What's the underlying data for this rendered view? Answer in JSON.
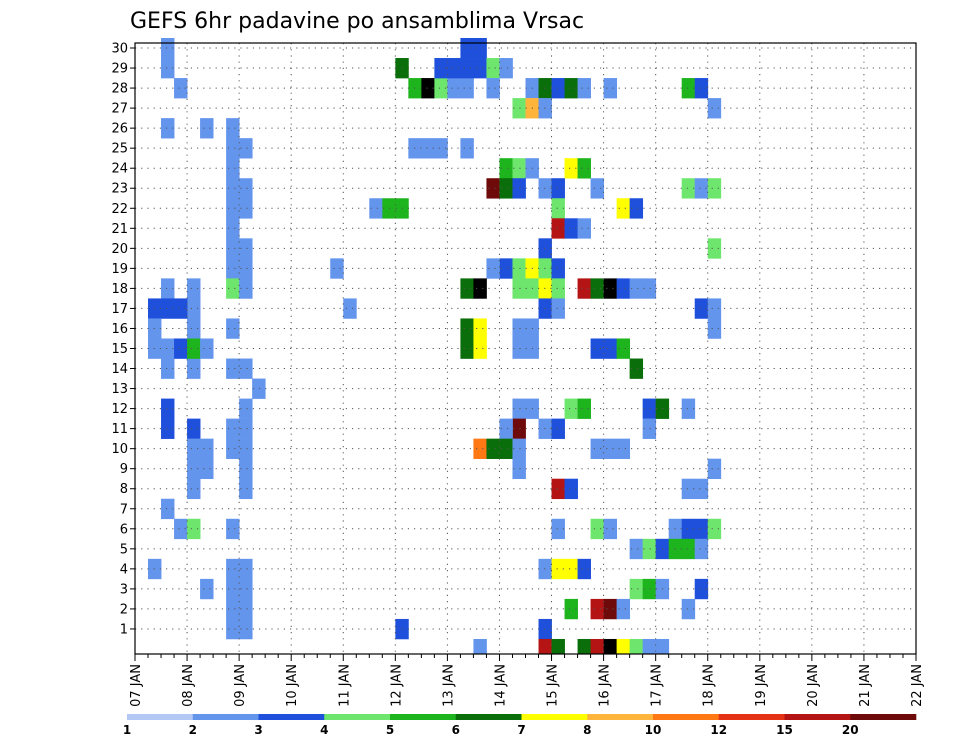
{
  "chart_data": {
    "type": "heatmap",
    "title": "GEFS 6hr padavine po ansamblima Vrsac",
    "x_tick_labels": [
      "07 JAN",
      "08 JAN",
      "09 JAN",
      "10 JAN",
      "11 JAN",
      "12 JAN",
      "13 JAN",
      "14 JAN",
      "15 JAN",
      "16 JAN",
      "17 JAN",
      "18 JAN",
      "19 JAN",
      "20 JAN",
      "21 JAN",
      "22 JAN"
    ],
    "y_tick_labels": [
      "1",
      "2",
      "3",
      "4",
      "5",
      "6",
      "7",
      "8",
      "9",
      "10",
      "11",
      "12",
      "13",
      "14",
      "15",
      "16",
      "17",
      "18",
      "19",
      "20",
      "21",
      "22",
      "23",
      "24",
      "25",
      "26",
      "27",
      "28",
      "29",
      "30"
    ],
    "x_steps_per_day": 4,
    "y_rows": [
      "0",
      "1",
      "2",
      "3",
      "4",
      "5",
      "6",
      "7",
      "8",
      "9",
      "10",
      "11",
      "12",
      "13",
      "14",
      "15",
      "16",
      "17",
      "18",
      "19",
      "20",
      "21",
      "22",
      "23",
      "24",
      "25",
      "26",
      "27",
      "28",
      "29",
      "30"
    ],
    "grid": true,
    "colorbar": {
      "labels": [
        "1",
        "2",
        "3",
        "4",
        "5",
        "6",
        "7",
        "8",
        "10",
        "12",
        "15",
        "20"
      ],
      "colors": [
        "#b4c8f5",
        "#6495ed",
        "#1e50dc",
        "#6ee66e",
        "#1eb41e",
        "#0a6e0a",
        "#ffff00",
        "#ffb43c",
        "#ff7814",
        "#e63214",
        "#b41414",
        "#6e0a0a"
      ]
    },
    "cells": [
      [
        2,
        30,
        1
      ],
      [
        2,
        29,
        1
      ],
      [
        2,
        18,
        1
      ],
      [
        2,
        17,
        2
      ],
      [
        2,
        15,
        1
      ],
      [
        2,
        14,
        1
      ],
      [
        2,
        12,
        2
      ],
      [
        2,
        11,
        2
      ],
      [
        2,
        7,
        1
      ],
      [
        1,
        17,
        2
      ],
      [
        1,
        16,
        1
      ],
      [
        1,
        15,
        1
      ],
      [
        1,
        4,
        1
      ],
      [
        3,
        28,
        1
      ],
      [
        2,
        26,
        1
      ],
      [
        5,
        26,
        1
      ],
      [
        4,
        18,
        1
      ],
      [
        4,
        17,
        1
      ],
      [
        4,
        16,
        1
      ],
      [
        4,
        14,
        1
      ],
      [
        4,
        11,
        2
      ],
      [
        3,
        17,
        2
      ],
      [
        3,
        15,
        2
      ],
      [
        4,
        15,
        4
      ],
      [
        5,
        15,
        1
      ],
      [
        4,
        10,
        1
      ],
      [
        5,
        10,
        1
      ],
      [
        4,
        9,
        1
      ],
      [
        5,
        9,
        1
      ],
      [
        4,
        8,
        1
      ],
      [
        5,
        3,
        1
      ],
      [
        3,
        6,
        1
      ],
      [
        4,
        6,
        3
      ],
      [
        7,
        26,
        1
      ],
      [
        7,
        25,
        1
      ],
      [
        8,
        25,
        1
      ],
      [
        7,
        24,
        1
      ],
      [
        7,
        23,
        1
      ],
      [
        8,
        23,
        1
      ],
      [
        7,
        22,
        1
      ],
      [
        8,
        22,
        1
      ],
      [
        7,
        21,
        1
      ],
      [
        7,
        20,
        1
      ],
      [
        8,
        20,
        1
      ],
      [
        7,
        19,
        1
      ],
      [
        8,
        19,
        1
      ],
      [
        7,
        18,
        3
      ],
      [
        8,
        18,
        1
      ],
      [
        7,
        16,
        1
      ],
      [
        7,
        14,
        1
      ],
      [
        8,
        14,
        1
      ],
      [
        8,
        12,
        1
      ],
      [
        7,
        11,
        1
      ],
      [
        8,
        11,
        1
      ],
      [
        7,
        10,
        1
      ],
      [
        8,
        10,
        1
      ],
      [
        8,
        9,
        1
      ],
      [
        8,
        8,
        1
      ],
      [
        7,
        6,
        1
      ],
      [
        7,
        4,
        1
      ],
      [
        8,
        4,
        1
      ],
      [
        7,
        3,
        1
      ],
      [
        8,
        3,
        1
      ],
      [
        7,
        2,
        1
      ],
      [
        8,
        2,
        1
      ],
      [
        7,
        1,
        1
      ],
      [
        8,
        1,
        1
      ],
      [
        9,
        13,
        1
      ],
      [
        15,
        19,
        1
      ],
      [
        16,
        17,
        1
      ],
      [
        18,
        22,
        1
      ],
      [
        19,
        22,
        4
      ],
      [
        20,
        22,
        4
      ],
      [
        20,
        29,
        5
      ],
      [
        20,
        1,
        2
      ],
      [
        21,
        25,
        1
      ],
      [
        22,
        25,
        1
      ],
      [
        23,
        25,
        1
      ],
      [
        25,
        25,
        1
      ],
      [
        21,
        28,
        4
      ],
      [
        22,
        28,
        14
      ],
      [
        23,
        28,
        3
      ],
      [
        24,
        28,
        1
      ],
      [
        25,
        28,
        1
      ],
      [
        23,
        29,
        2
      ],
      [
        24,
        29,
        2
      ],
      [
        25,
        30,
        2
      ],
      [
        26,
        30,
        2
      ],
      [
        25,
        29,
        2
      ],
      [
        26,
        29,
        2
      ],
      [
        27,
        29,
        3
      ],
      [
        28,
        29,
        1
      ],
      [
        27,
        28,
        1
      ],
      [
        30,
        28,
        1
      ],
      [
        31,
        28,
        5
      ],
      [
        32,
        28,
        2
      ],
      [
        33,
        28,
        5
      ],
      [
        34,
        28,
        1
      ],
      [
        36,
        28,
        1
      ],
      [
        42,
        28,
        4
      ],
      [
        43,
        28,
        2
      ],
      [
        29,
        27,
        3
      ],
      [
        30,
        27,
        7
      ],
      [
        31,
        27,
        1
      ],
      [
        44,
        27,
        1
      ],
      [
        28,
        24,
        4
      ],
      [
        29,
        24,
        3
      ],
      [
        30,
        24,
        1
      ],
      [
        33,
        24,
        6
      ],
      [
        34,
        24,
        4
      ],
      [
        27,
        23,
        11
      ],
      [
        28,
        23,
        5
      ],
      [
        29,
        23,
        2
      ],
      [
        31,
        23,
        1
      ],
      [
        32,
        23,
        2
      ],
      [
        35,
        23,
        1
      ],
      [
        42,
        23,
        3
      ],
      [
        43,
        23,
        1
      ],
      [
        44,
        23,
        3
      ],
      [
        32,
        22,
        3
      ],
      [
        37,
        22,
        6
      ],
      [
        38,
        22,
        2
      ],
      [
        32,
        21,
        10
      ],
      [
        33,
        21,
        2
      ],
      [
        34,
        21,
        1
      ],
      [
        31,
        20,
        2
      ],
      [
        28,
        19,
        2
      ],
      [
        44,
        20,
        3
      ],
      [
        27,
        19,
        1
      ],
      [
        29,
        19,
        3
      ],
      [
        30,
        19,
        6
      ],
      [
        31,
        19,
        3
      ],
      [
        32,
        19,
        2
      ],
      [
        29,
        18,
        3
      ],
      [
        30,
        18,
        3
      ],
      [
        31,
        18,
        6
      ],
      [
        32,
        18,
        3
      ],
      [
        25,
        18,
        5
      ],
      [
        26,
        18,
        14
      ],
      [
        34,
        18,
        10
      ],
      [
        35,
        18,
        5
      ],
      [
        36,
        18,
        14
      ],
      [
        37,
        18,
        2
      ],
      [
        38,
        18,
        1
      ],
      [
        39,
        18,
        1
      ],
      [
        31,
        17,
        2
      ],
      [
        32,
        17,
        1
      ],
      [
        43,
        17,
        2
      ],
      [
        44,
        17,
        1
      ],
      [
        25,
        16,
        5
      ],
      [
        26,
        16,
        6
      ],
      [
        44,
        16,
        1
      ],
      [
        29,
        16,
        1
      ],
      [
        30,
        16,
        1
      ],
      [
        25,
        15,
        5
      ],
      [
        26,
        15,
        6
      ],
      [
        29,
        15,
        1
      ],
      [
        30,
        15,
        1
      ],
      [
        35,
        15,
        2
      ],
      [
        36,
        15,
        2
      ],
      [
        37,
        15,
        4
      ],
      [
        38,
        14,
        5
      ],
      [
        29,
        12,
        1
      ],
      [
        30,
        12,
        1
      ],
      [
        33,
        12,
        3
      ],
      [
        34,
        12,
        4
      ],
      [
        39,
        12,
        2
      ],
      [
        40,
        12,
        5
      ],
      [
        42,
        12,
        1
      ],
      [
        29,
        11,
        11
      ],
      [
        28,
        11,
        1
      ],
      [
        31,
        11,
        1
      ],
      [
        32,
        11,
        2
      ],
      [
        39,
        11,
        1
      ],
      [
        26,
        10,
        8
      ],
      [
        27,
        10,
        5
      ],
      [
        28,
        10,
        5
      ],
      [
        29,
        10,
        1
      ],
      [
        35,
        10,
        1
      ],
      [
        36,
        10,
        1
      ],
      [
        37,
        10,
        1
      ],
      [
        29,
        9,
        1
      ],
      [
        44,
        9,
        1
      ],
      [
        32,
        8,
        10
      ],
      [
        33,
        8,
        2
      ],
      [
        42,
        8,
        1
      ],
      [
        43,
        8,
        1
      ],
      [
        32,
        6,
        1
      ],
      [
        35,
        6,
        3
      ],
      [
        36,
        6,
        1
      ],
      [
        41,
        6,
        1
      ],
      [
        42,
        6,
        2
      ],
      [
        43,
        6,
        2
      ],
      [
        44,
        6,
        3
      ],
      [
        38,
        5,
        1
      ],
      [
        39,
        5,
        3
      ],
      [
        40,
        5,
        2
      ],
      [
        41,
        5,
        4
      ],
      [
        42,
        5,
        4
      ],
      [
        43,
        5,
        1
      ],
      [
        31,
        4,
        1
      ],
      [
        32,
        4,
        6
      ],
      [
        33,
        4,
        6
      ],
      [
        34,
        4,
        2
      ],
      [
        38,
        3,
        3
      ],
      [
        39,
        3,
        4
      ],
      [
        40,
        3,
        1
      ],
      [
        43,
        3,
        2
      ],
      [
        33,
        2,
        4
      ],
      [
        35,
        2,
        10
      ],
      [
        36,
        2,
        11
      ],
      [
        37,
        2,
        1
      ],
      [
        42,
        2,
        1
      ],
      [
        31,
        1,
        2
      ],
      [
        26,
        0,
        1
      ],
      [
        31,
        0,
        10
      ],
      [
        32,
        0,
        5
      ],
      [
        34,
        0,
        5
      ],
      [
        35,
        0,
        10
      ],
      [
        36,
        0,
        14
      ],
      [
        37,
        0,
        6
      ],
      [
        38,
        0,
        3
      ],
      [
        39,
        0,
        1
      ],
      [
        40,
        0,
        1
      ]
    ]
  }
}
